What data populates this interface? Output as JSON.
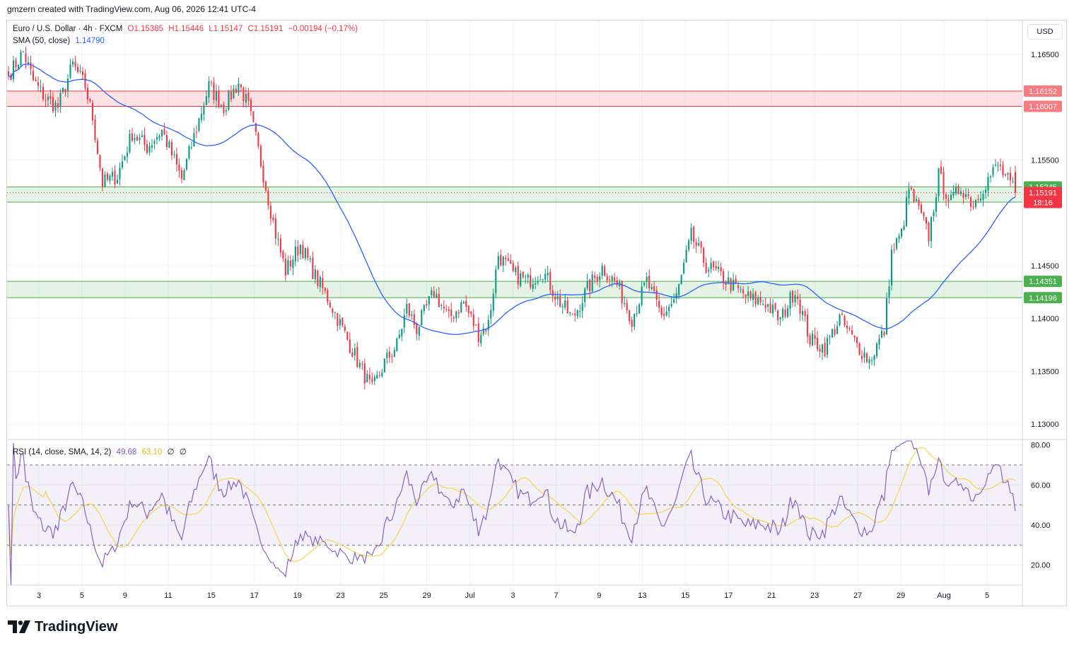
{
  "header": {
    "text": "gmzern created with TradingView.com, Aug 06, 2026 12:41 UTC-4"
  },
  "legend": {
    "symbol": "Euro / U.S. Dollar · 4h · FXCM",
    "open": "O1.15385",
    "high": "H1.15446",
    "low": "L1.15147",
    "close": "C1.15191",
    "change": "−0.00194 (−0.17%)",
    "sma_label": "SMA (50, close)",
    "sma_value": "1.14790",
    "rsi_label": "RSI (14, close, SMA, 14, 2)",
    "rsi_value": "49.68",
    "rsi_sma_value": "63.10",
    "rsi_extra1": "∅",
    "rsi_extra2": "∅"
  },
  "currency": "USD",
  "brand": "TradingView",
  "colors": {
    "up": "#089981",
    "down": "#f23645",
    "sma": "#2962ff",
    "rsi": "#7e57c2",
    "rsi_sma": "#f5d547",
    "resistance_zone": "#f23645",
    "support_zone": "#4caf50"
  },
  "chart_data": [
    {
      "type": "candlestick",
      "y_ticks": [
        "1.16500",
        "1.15500",
        "1.14500",
        "1.14000",
        "1.13500",
        "1.13000"
      ],
      "ylim": [
        1.1286,
        1.1682
      ],
      "x_ticks": [
        "3",
        "5",
        "9",
        "11",
        "15",
        "17",
        "19",
        "23",
        "25",
        "29",
        "Jul",
        "3",
        "7",
        "9",
        "13",
        "15",
        "17",
        "21",
        "23",
        "27",
        "29",
        "Aug",
        "5"
      ],
      "zones": [
        {
          "kind": "resistance",
          "top": 1.16152,
          "bottom": 1.16007,
          "top_label": "1.16152",
          "bottom_label": "1.16007"
        },
        {
          "kind": "support",
          "top": 1.15245,
          "bottom": 1.15101,
          "top_label": "1.15245",
          "bottom_label": "1.15101"
        },
        {
          "kind": "support",
          "top": 1.14351,
          "bottom": 1.14196,
          "top_label": "1.14351",
          "bottom_label": "1.14196"
        }
      ],
      "last_price": {
        "value": 1.15191,
        "label": "1.15191",
        "countdown": "18:16"
      },
      "series": [
        {
          "name": "Euro / U.S. Dollar",
          "anchors": [
            [
              0,
              1.163
            ],
            [
              6,
              1.1652
            ],
            [
              10,
              1.1625
            ],
            [
              15,
              1.1608
            ],
            [
              20,
              1.16
            ],
            [
              26,
              1.164
            ],
            [
              31,
              1.162
            ],
            [
              34,
              1.159
            ],
            [
              38,
              1.1528
            ],
            [
              44,
              1.1535
            ],
            [
              50,
              1.1575
            ],
            [
              56,
              1.1562
            ],
            [
              62,
              1.1578
            ],
            [
              70,
              1.1532
            ],
            [
              76,
              1.158
            ],
            [
              81,
              1.162
            ],
            [
              87,
              1.16
            ],
            [
              93,
              1.1623
            ],
            [
              97,
              1.16
            ],
            [
              100,
              1.157
            ],
            [
              104,
              1.1525
            ],
            [
              108,
              1.148
            ],
            [
              112,
              1.1445
            ],
            [
              118,
              1.147
            ],
            [
              124,
              1.144
            ],
            [
              130,
              1.1415
            ],
            [
              136,
              1.1385
            ],
            [
              142,
              1.1355
            ],
            [
              147,
              1.1332
            ],
            [
              152,
              1.1358
            ],
            [
              157,
              1.1375
            ],
            [
              161,
              1.141
            ],
            [
              165,
              1.139
            ],
            [
              172,
              1.1425
            ],
            [
              178,
              1.14
            ],
            [
              184,
              1.1415
            ],
            [
              190,
              1.1385
            ],
            [
              194,
              1.1395
            ],
            [
              198,
              1.146
            ],
            [
              204,
              1.1442
            ],
            [
              210,
              1.1435
            ],
            [
              216,
              1.1445
            ],
            [
              222,
              1.1418
            ],
            [
              228,
              1.14
            ],
            [
              234,
              1.1428
            ],
            [
              240,
              1.1448
            ],
            [
              246,
              1.1432
            ],
            [
              252,
              1.14
            ],
            [
              258,
              1.1435
            ],
            [
              264,
              1.1402
            ],
            [
              270,
              1.142
            ],
            [
              276,
              1.1478
            ],
            [
              282,
              1.145
            ],
            [
              288,
              1.144
            ],
            [
              294,
              1.1428
            ],
            [
              300,
              1.1418
            ],
            [
              306,
              1.1415
            ],
            [
              312,
              1.1398
            ],
            [
              318,
              1.1428
            ],
            [
              324,
              1.138
            ],
            [
              330,
              1.1372
            ],
            [
              336,
              1.14
            ],
            [
              342,
              1.1378
            ],
            [
              348,
              1.136
            ],
            [
              354,
              1.1388
            ],
            [
              357,
              1.1462
            ],
            [
              361,
              1.148
            ],
            [
              364,
              1.1522
            ],
            [
              368,
              1.1502
            ],
            [
              372,
              1.1478
            ],
            [
              376,
              1.1535
            ],
            [
              381,
              1.151
            ],
            [
              385,
              1.1525
            ],
            [
              390,
              1.1508
            ],
            [
              394,
              1.1525
            ],
            [
              400,
              1.1545
            ],
            [
              404,
              1.153
            ],
            [
              407,
              1.1519
            ]
          ]
        },
        {
          "name": "SMA (50, close)",
          "last": 1.1479
        }
      ]
    },
    {
      "type": "line",
      "y_ticks": [
        "80.00",
        "60.00",
        "40.00",
        "20.00"
      ],
      "ylim": [
        10,
        82
      ],
      "levels": [
        70,
        50,
        30
      ],
      "series": [
        {
          "name": "RSI (14, close, SMA, 14, 2)",
          "last": 49.68
        },
        {
          "name": "RSI SMA",
          "last": 63.1
        }
      ]
    }
  ]
}
